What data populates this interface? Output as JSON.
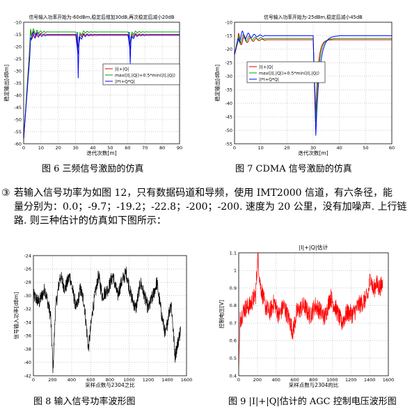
{
  "captions": {
    "fig6": "图 6 三频信号激励的仿真",
    "fig7": "图 7 CDMA 信号激励的仿真",
    "fig8": "图 8 输入信号功率波形图",
    "fig9": "图 9 |I|+|Q|估计的 AGC 控制电压波形图"
  },
  "paragraph": {
    "marker": "③",
    "line1": "若输入信号功率为如图 12，只有数据码道和导频，使用 IMT2000 信道，有六条径，能",
    "line2": "量分别为：0.0；-9.7；-19.2；-22.8；-200；-200. 速度为 20 公里，没有加噪声. 上行链",
    "line3": "路. 则三种估计的仿真如下图所示："
  },
  "chart_data": [
    {
      "id": "fig6",
      "type": "line",
      "title": "信号输入功率开始为-60dBm,稳定后增加30dB,再次稳定后减小20dB",
      "xlabel": "迭代次数[m]",
      "ylabel": "稳定输出[dBm]",
      "xlim": [
        0,
        90
      ],
      "ylim": [
        -60,
        -10
      ],
      "xticks": [
        "0",
        "10",
        "20",
        "30",
        "40",
        "50",
        "60",
        "70",
        "80",
        "90"
      ],
      "yticks": [
        "-10",
        "-15",
        "-20",
        "-25",
        "-30",
        "-35",
        "-40",
        "-45",
        "-50",
        "-55",
        "-60"
      ],
      "legend": [
        "|I|+|Q|",
        "max(|I|,|Q|)+0.5*min(|I|,|Q|)",
        "|I*I+Q*Q|"
      ],
      "legend_position": "center-right",
      "series_colors": [
        "#e00000",
        "#00a000",
        "#0000ff"
      ]
    },
    {
      "id": "fig7",
      "type": "line",
      "title": "信号输入功率开始为-25dBm,稳定后减小45dB",
      "xlabel": "迭代次数[m]",
      "ylabel": "稳定输出[dBm]",
      "xlim": [
        0,
        60
      ],
      "ylim": [
        -55,
        -10
      ],
      "xticks": [
        "0",
        "10",
        "20",
        "30",
        "40",
        "50",
        "60"
      ],
      "yticks": [
        "-10",
        "-15",
        "-20",
        "-25",
        "-30",
        "-35",
        "-40",
        "-45",
        "-50",
        "-55"
      ],
      "legend": [
        "|I|+|Q|",
        "max(|I|,|Q|)+0.5*min(|I|,|Q|)",
        "|I*I+Q*Q|"
      ],
      "legend_position": "center-right",
      "series_colors": [
        "#e00000",
        "#00a000",
        "#0000ff"
      ]
    },
    {
      "id": "fig8",
      "type": "line",
      "title": "",
      "xlabel": "采样点数与2304之比",
      "ylabel": "信号输入功率[dBm]",
      "xlim": [
        0,
        1600
      ],
      "ylim": [
        -42,
        -24
      ],
      "xticks": [
        "0",
        "200",
        "400",
        "600",
        "800",
        "1000",
        "1200",
        "1400",
        "1600"
      ],
      "yticks": [
        "-24",
        "-26",
        "-28",
        "-30",
        "-32",
        "-34",
        "-36",
        "-38",
        "-40",
        "-42"
      ],
      "series_colors": [
        "#000000"
      ]
    },
    {
      "id": "fig9",
      "type": "line",
      "title": "|I|+|Q|估计",
      "xlabel": "采样点数与2304的比",
      "ylabel": "控制电压[V]",
      "xlim": [
        0,
        1600
      ],
      "ylim": [
        0.4,
        1.1
      ],
      "xticks": [
        "0",
        "200",
        "400",
        "600",
        "800",
        "1000",
        "1200",
        "1400",
        "1600"
      ],
      "yticks": [
        "1.1",
        "1",
        "0.9",
        "0.8",
        "0.7",
        "0.6",
        "0.5",
        "0.4"
      ],
      "series_colors": [
        "#ff0000"
      ]
    }
  ]
}
